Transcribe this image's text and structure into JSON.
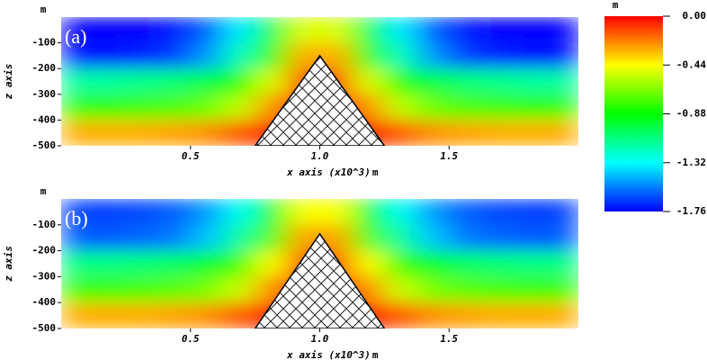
{
  "chart_data": [
    {
      "type": "heatmap",
      "panel_label": "(a)",
      "xlabel": "x axis (x10^3)",
      "xlabel_unit": "m",
      "ylabel": "z axis",
      "ylabel_unit": "m",
      "xlim": [
        0,
        2
      ],
      "ylim": [
        -500,
        0
      ],
      "xticks": [
        0.5,
        {
          "value": 1,
          "label": "1.0"
        },
        1.5
      ],
      "yticks": [
        -100,
        -200,
        -300,
        -400,
        -500
      ],
      "x": [
        0.0625,
        0.1875,
        0.3125,
        0.4375,
        0.5625,
        0.6875,
        0.8125,
        0.9375,
        1.0625,
        1.1875,
        1.3125,
        1.4375,
        1.5625,
        1.6875,
        1.8125,
        1.9375
      ],
      "z": [
        -50,
        -150,
        -250,
        -350,
        -450
      ],
      "values": [
        [
          -1.76,
          -1.76,
          -1.75,
          -1.72,
          -1.6,
          -1.35,
          -1.0,
          -0.5,
          -0.5,
          -1.0,
          -1.35,
          -1.6,
          -1.72,
          -1.75,
          -1.76,
          -1.76
        ],
        [
          -1.72,
          -1.72,
          -1.7,
          -1.65,
          -1.5,
          -1.2,
          -0.8,
          -0.3,
          -0.3,
          -0.8,
          -1.2,
          -1.5,
          -1.65,
          -1.7,
          -1.72,
          -1.72
        ],
        [
          -1.15,
          -1.15,
          -1.12,
          -1.08,
          -1.0,
          -0.85,
          -0.5,
          -0.1,
          -0.1,
          -0.5,
          -0.85,
          -1.0,
          -1.08,
          -1.12,
          -1.15,
          -1.15
        ],
        [
          -0.8,
          -0.8,
          -0.78,
          -0.75,
          -0.7,
          -0.55,
          -0.25,
          0,
          0,
          -0.25,
          -0.55,
          -0.7,
          -0.75,
          -0.78,
          -0.8,
          -0.8
        ],
        [
          -0.3,
          -0.3,
          -0.3,
          -0.28,
          -0.25,
          -0.15,
          -0.05,
          0,
          0,
          -0.05,
          -0.15,
          -0.25,
          -0.28,
          -0.3,
          -0.3,
          -0.3
        ]
      ],
      "obstacle": {
        "x": [
          0.75,
          1.0,
          1.25
        ],
        "z": [
          -500,
          -150,
          -500
        ]
      }
    },
    {
      "type": "heatmap",
      "panel_label": "(b)",
      "xlabel": "x axis (x10^3)",
      "xlabel_unit": "m",
      "ylabel": "z axis",
      "ylabel_unit": "m",
      "xlim": [
        0,
        2
      ],
      "ylim": [
        -500,
        0
      ],
      "xticks": [
        0.5,
        {
          "value": 1,
          "label": "1.0"
        },
        1.5
      ],
      "yticks": [
        -100,
        -200,
        -300,
        -400,
        -500
      ],
      "x": [
        0.0625,
        0.1875,
        0.3125,
        0.4375,
        0.5625,
        0.6875,
        0.8125,
        0.9375,
        1.0625,
        1.1875,
        1.3125,
        1.4375,
        1.5625,
        1.6875,
        1.8125,
        1.9375
      ],
      "z": [
        -50,
        -150,
        -250,
        -350,
        -450
      ],
      "values": [
        [
          -1.65,
          -1.65,
          -1.64,
          -1.6,
          -1.5,
          -1.3,
          -0.95,
          -0.45,
          -0.45,
          -0.95,
          -1.3,
          -1.5,
          -1.6,
          -1.64,
          -1.65,
          -1.65
        ],
        [
          -1.6,
          -1.6,
          -1.58,
          -1.55,
          -1.42,
          -1.15,
          -0.75,
          -0.28,
          -0.28,
          -0.75,
          -1.15,
          -1.42,
          -1.55,
          -1.58,
          -1.6,
          -1.6
        ],
        [
          -1.1,
          -1.1,
          -1.08,
          -1.05,
          -0.95,
          -0.8,
          -0.45,
          -0.1,
          -0.1,
          -0.45,
          -0.8,
          -0.95,
          -1.05,
          -1.08,
          -1.1,
          -1.1
        ],
        [
          -0.78,
          -0.78,
          -0.76,
          -0.73,
          -0.68,
          -0.53,
          -0.24,
          0,
          0,
          -0.24,
          -0.53,
          -0.68,
          -0.73,
          -0.76,
          -0.78,
          -0.78
        ],
        [
          -0.3,
          -0.3,
          -0.3,
          -0.28,
          -0.25,
          -0.15,
          -0.05,
          0,
          0,
          -0.05,
          -0.15,
          -0.25,
          -0.28,
          -0.3,
          -0.3,
          -0.3
        ]
      ],
      "obstacle": {
        "x": [
          0.75,
          1.0,
          1.25
        ],
        "z": [
          -500,
          -135,
          -500
        ]
      }
    }
  ],
  "colorbar": {
    "unit": "m",
    "lim": [
      -1.76,
      0
    ],
    "colors": [
      "#0000ff",
      "#00ffff",
      "#00ff00",
      "#ffff00",
      "#ff0000"
    ],
    "ticks": [
      {
        "value": 0,
        "label": "0.00"
      },
      -0.44,
      -0.88,
      -1.32,
      -1.76
    ]
  }
}
